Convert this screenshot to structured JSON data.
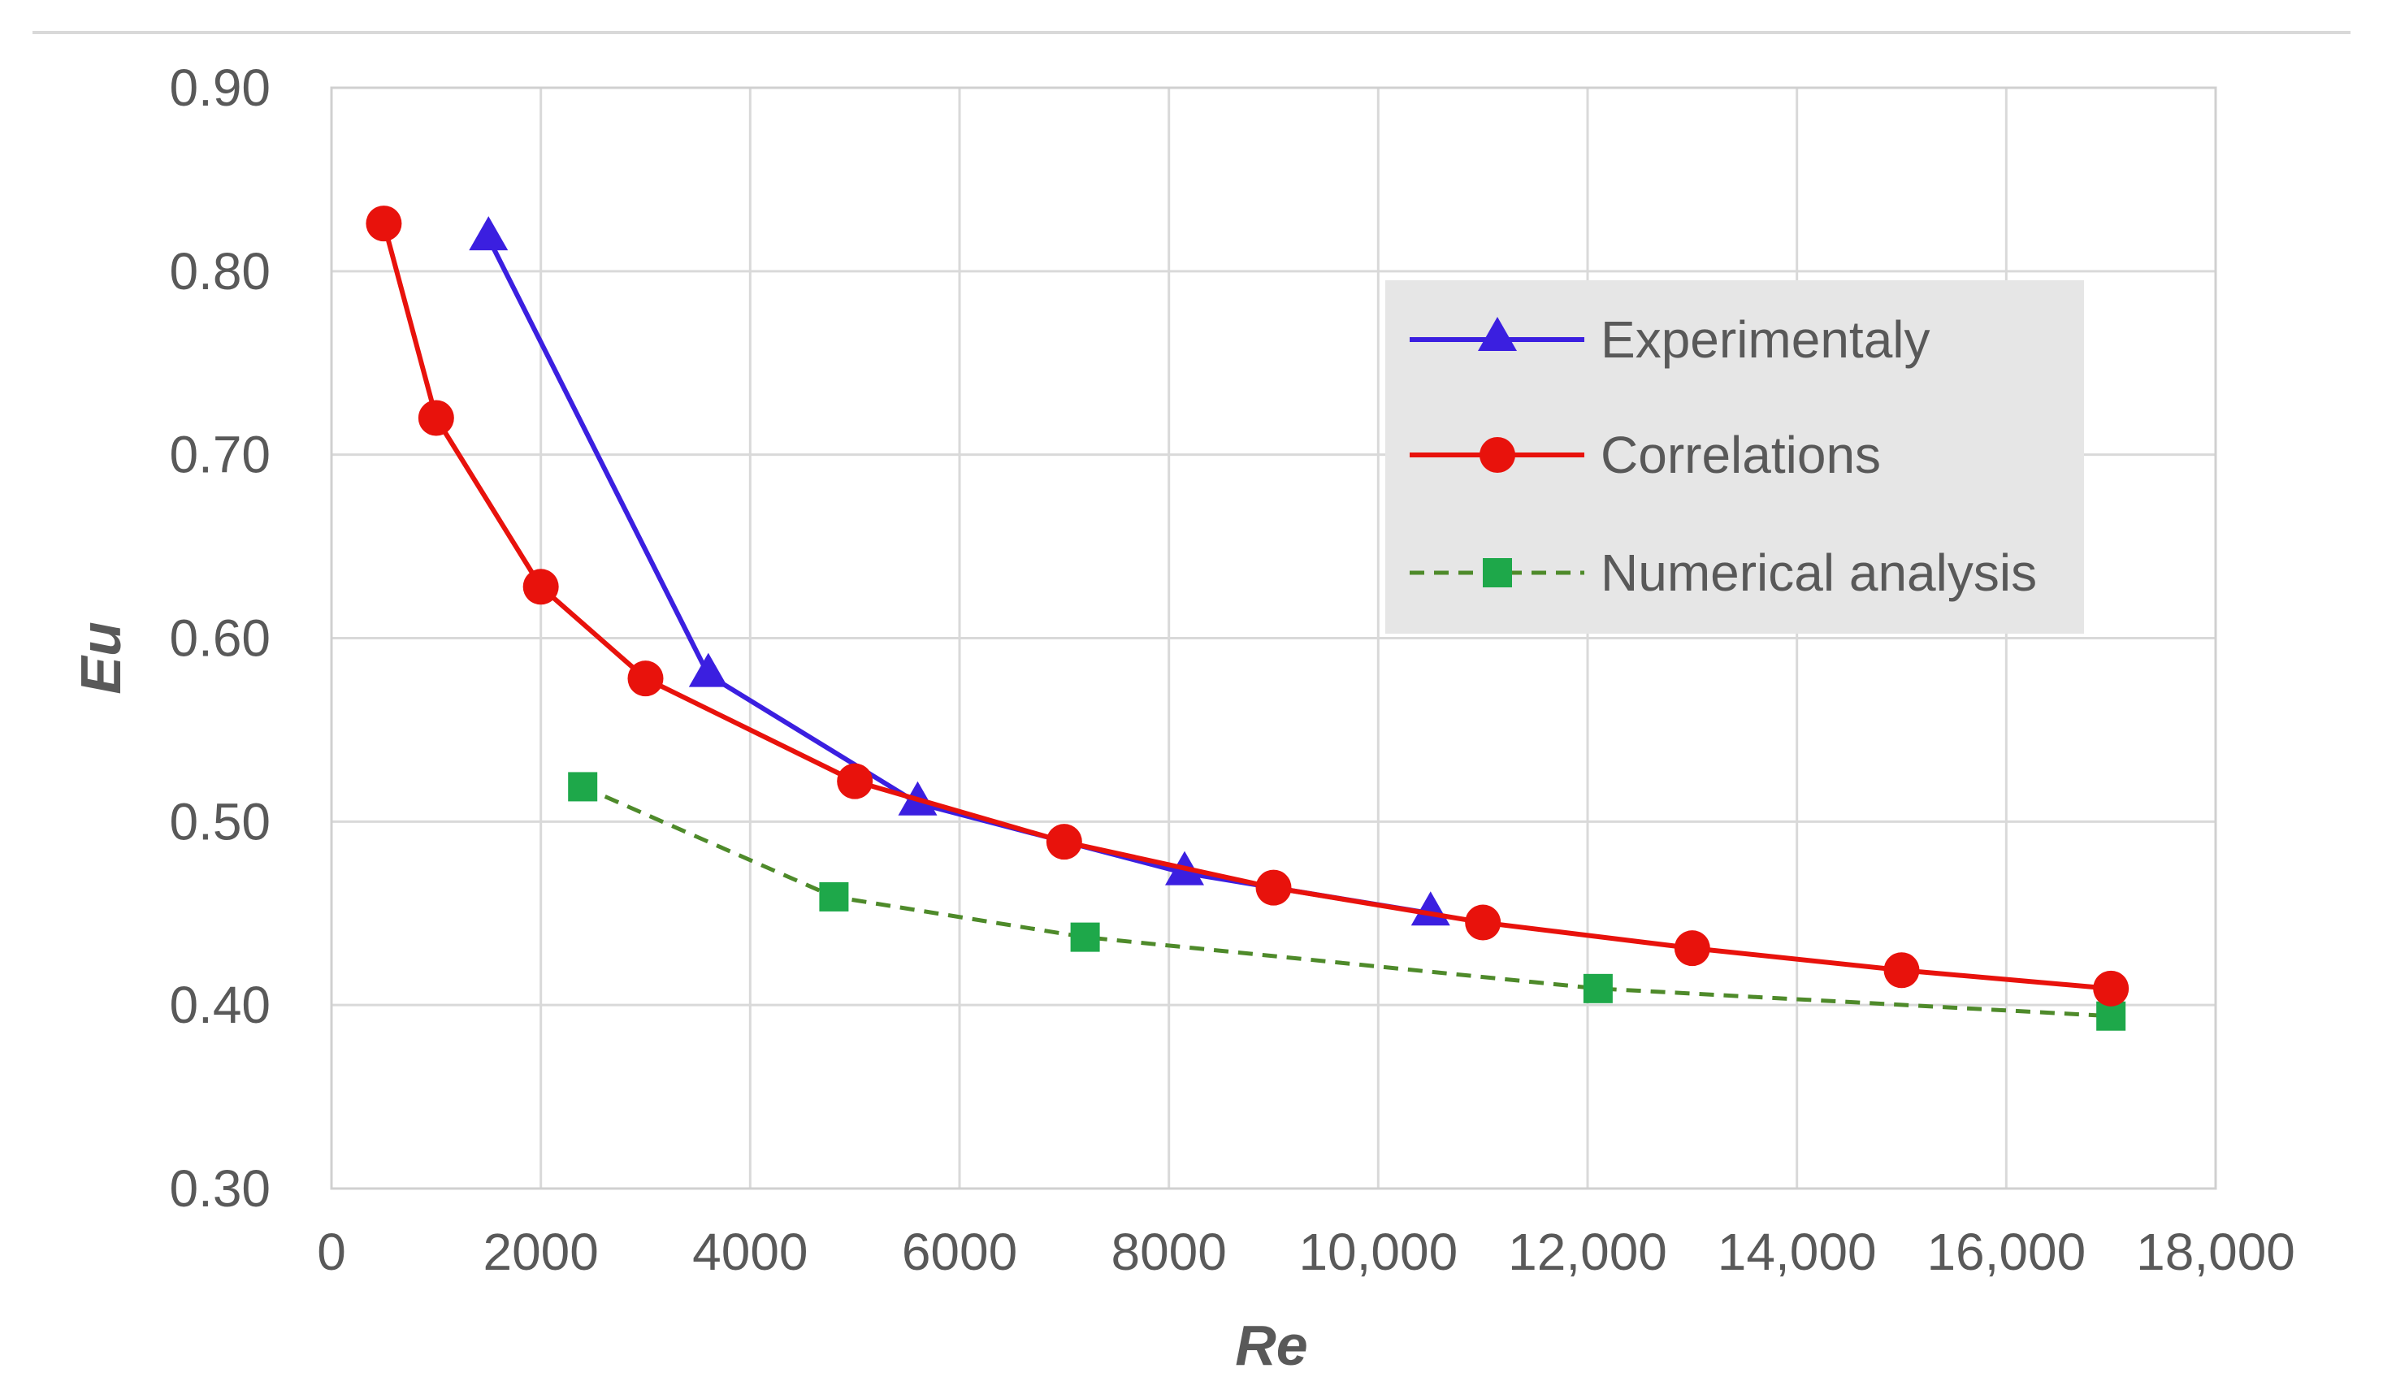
{
  "chart_data": {
    "type": "line",
    "title": "",
    "xlabel": "Re",
    "ylabel": "Eu",
    "xlim": [
      0,
      18000
    ],
    "ylim": [
      0.3,
      0.9
    ],
    "grid": true,
    "legend_position": "top-right",
    "x_ticks": [
      0,
      2000,
      4000,
      6000,
      8000,
      10000,
      12000,
      14000,
      16000,
      18000
    ],
    "x_tick_labels": [
      "0",
      "2000",
      "4000",
      "6000",
      "8000",
      "10,000",
      "12,000",
      "14,000",
      "16,000",
      "18,000"
    ],
    "y_ticks": [
      0.3,
      0.4,
      0.5,
      0.6,
      0.7,
      0.8,
      0.9
    ],
    "y_tick_labels": [
      "0.30",
      "0.40",
      "0.50",
      "0.60",
      "0.70",
      "0.80",
      "0.90"
    ],
    "series": [
      {
        "name": "Experimentaly",
        "marker": "triangle",
        "line": "solid",
        "color": "#3B1FE0",
        "x": [
          1500,
          3600,
          5600,
          8150,
          10500
        ],
        "y": [
          0.818,
          0.58,
          0.51,
          0.472,
          0.45
        ]
      },
      {
        "name": "Correlations",
        "marker": "circle",
        "line": "solid",
        "color": "#E8120C",
        "x": [
          500,
          1000,
          2000,
          3000,
          5000,
          7000,
          9000,
          11000,
          13000,
          15000,
          17000
        ],
        "y": [
          0.826,
          0.72,
          0.628,
          0.578,
          0.522,
          0.489,
          0.464,
          0.445,
          0.431,
          0.419,
          0.409
        ]
      },
      {
        "name": "Numerical analysis",
        "marker": "square",
        "line": "dashed",
        "color": "#1EA84A",
        "line_color": "#4E8A2A",
        "x": [
          2400,
          4800,
          7200,
          12100,
          17000
        ],
        "y": [
          0.519,
          0.459,
          0.437,
          0.409,
          0.394
        ]
      }
    ]
  }
}
